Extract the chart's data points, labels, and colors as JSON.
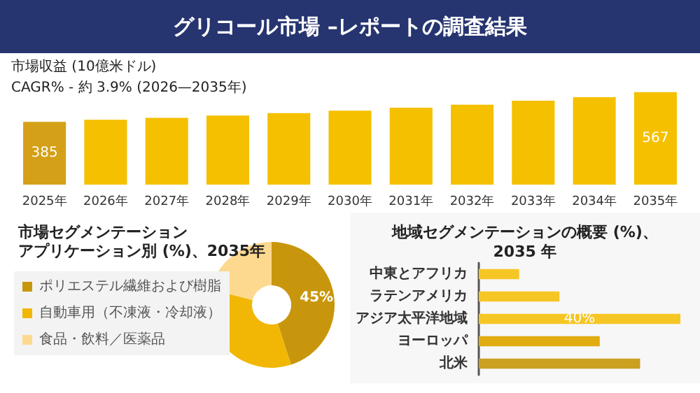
{
  "chart_data": [
    {
      "type": "bar",
      "title": "グリコール市場 –レポートの調査結果",
      "annotations": [
        "市場収益 (10億米ドル)",
        "CAGR% - 約 3.9% (2026—2035年)"
      ],
      "categories": [
        "2025年",
        "2026年",
        "2027年",
        "2028年",
        "2029年",
        "2030年",
        "2031年",
        "2032年",
        "2033年",
        "2034年",
        "2035年"
      ],
      "values": [
        385,
        397,
        409,
        423,
        438,
        453,
        471,
        490,
        514,
        536,
        567
      ],
      "colors": [
        "#d4a017",
        "#f5c000",
        "#f5c000",
        "#f5c000",
        "#f5c000",
        "#f5c000",
        "#f5c000",
        "#f5c000",
        "#f5c000",
        "#f5c000",
        "#f5c000"
      ],
      "value_labels": [
        "385",
        null,
        null,
        null,
        null,
        null,
        null,
        null,
        null,
        null,
        "567"
      ],
      "tick_labels": "x"
    },
    {
      "type": "donut",
      "title": "市場セグメンテーション",
      "subtitle": "アプリケーション別 (%)、2035年",
      "categories": [
        "ポリエステル繊維および樹脂",
        "自動車用（不凍液・冷却液）",
        "食品・飲料／医薬品"
      ],
      "values": [
        45,
        34,
        21
      ],
      "colors": [
        "#c8960c",
        "#f2b705",
        "#fdd88f"
      ],
      "value_labels": [
        "45%",
        null,
        null
      ],
      "legend": "left"
    },
    {
      "type": "bar",
      "orientation": "horizontal",
      "title": "地域セグメンテーションの概要 (%)、2035 年",
      "categories": [
        "中東とアフリカ",
        "ラテンアメリカ",
        "アジア太平洋地域",
        "ヨーロッパ",
        "北米"
      ],
      "values": [
        8,
        16,
        40,
        24,
        32
      ],
      "colors": [
        "#f6c624",
        "#f6c624",
        "#f6c624",
        "#e0ac10",
        "#c9a020"
      ],
      "value_labels": [
        null,
        null,
        "40%",
        null,
        null
      ],
      "tick_labels": "y"
    }
  ]
}
